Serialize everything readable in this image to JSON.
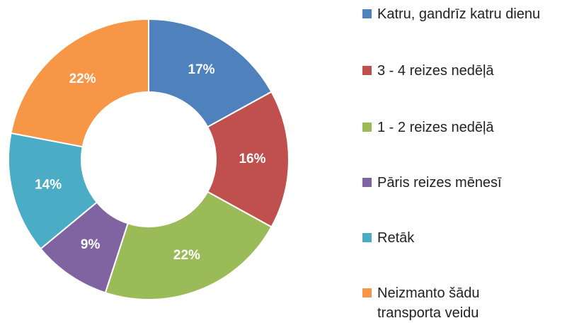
{
  "chart_data": {
    "type": "donut",
    "categories": [
      "Katru, gandrīz katru dienu",
      "3 - 4 reizes nedēļā",
      "1 - 2 reizes nedēļā",
      "Pāris reizes mēnesī",
      "Retāk",
      "Neizmanto šādu transporta veidu"
    ],
    "values": [
      17,
      16,
      22,
      9,
      14,
      22
    ],
    "value_labels": [
      "17%",
      "16%",
      "22%",
      "9%",
      "14%",
      "22%"
    ],
    "colors": [
      "#4f81bd",
      "#c0504d",
      "#9bbb59",
      "#8064a2",
      "#4bacc6",
      "#f79646"
    ],
    "legend": "right"
  }
}
